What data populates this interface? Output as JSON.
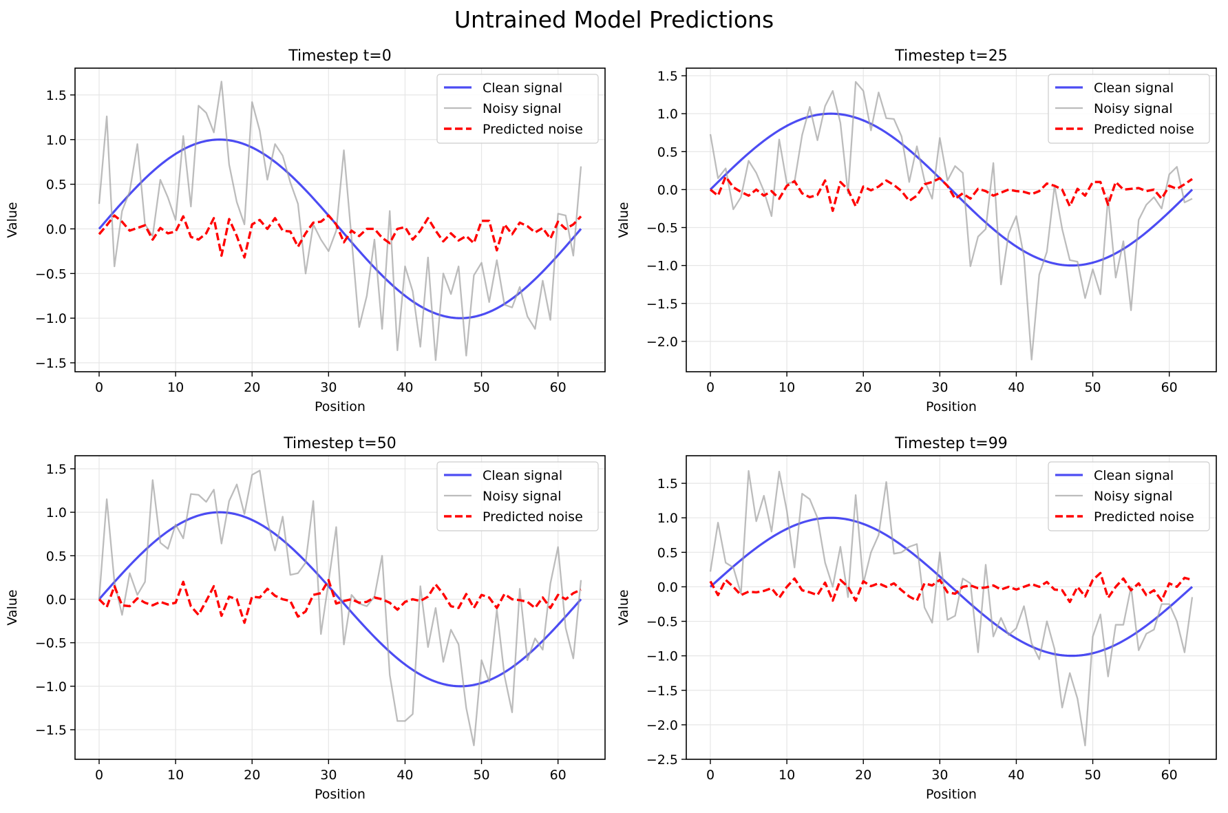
{
  "figure": {
    "suptitle": "Untrained Model Predictions"
  },
  "chart_data": [
    {
      "type": "line",
      "title": "Timestep t=0",
      "xlabel": "Position",
      "ylabel": "Value",
      "xlim": [
        -3.15,
        66.15
      ],
      "ylim": [
        -1.6,
        1.8
      ],
      "xticks": [
        0,
        10,
        20,
        30,
        40,
        50,
        60
      ],
      "xtick_labels": [
        "0",
        "10",
        "20",
        "30",
        "40",
        "50",
        "60"
      ],
      "yticks": [
        -1.5,
        -1.0,
        -0.5,
        0.0,
        0.5,
        1.0,
        1.5
      ],
      "ytick_labels": [
        "−1.5",
        "−1.0",
        "−0.5",
        "0.0",
        "0.5",
        "1.0",
        "1.5"
      ],
      "grid": true,
      "legend_position": "upper right",
      "legend": [
        "Clean signal",
        "Noisy signal",
        "Predicted noise"
      ],
      "series": [
        {
          "name": "Clean signal",
          "color": "#0000ee",
          "style": "solid",
          "generator": "sine",
          "x_range": [
            0,
            63
          ],
          "period": 63
        },
        {
          "name": "Noisy signal",
          "color": "#a0a0a0",
          "style": "solid",
          "values": [
            0.28,
            1.26,
            -0.42,
            0.2,
            0.42,
            0.95,
            0.05,
            -0.08,
            0.55,
            0.35,
            0.1,
            1.04,
            0.25,
            1.38,
            1.3,
            1.08,
            1.65,
            0.72,
            0.3,
            0.05,
            1.42,
            1.1,
            0.55,
            0.95,
            0.82,
            0.52,
            0.28,
            -0.5,
            0.05,
            -0.12,
            -0.25,
            -0.02,
            0.88,
            -0.1,
            -1.1,
            -0.75,
            -0.12,
            -1.12,
            0.2,
            -1.36,
            -0.42,
            -0.7,
            -1.32,
            -0.32,
            -1.47,
            -0.5,
            -0.73,
            -0.42,
            -1.42,
            -0.52,
            -0.38,
            -0.82,
            -0.35,
            -0.85,
            -0.88,
            -0.65,
            -0.98,
            -1.12,
            -0.58,
            -1.02,
            0.17,
            0.15,
            -0.3,
            0.7
          ]
        },
        {
          "name": "Predicted noise",
          "color": "#ff0000",
          "style": "dashed",
          "values": [
            -0.06,
            0.04,
            0.15,
            0.08,
            -0.02,
            0.01,
            0.04,
            -0.12,
            0.01,
            -0.05,
            -0.03,
            0.14,
            -0.09,
            -0.12,
            -0.05,
            0.12,
            -0.3,
            0.11,
            -0.08,
            -0.32,
            0.05,
            0.1,
            0.0,
            0.12,
            -0.02,
            -0.03,
            -0.2,
            -0.05,
            0.07,
            0.08,
            0.15,
            0.05,
            -0.15,
            -0.02,
            -0.08,
            0.0,
            0.0,
            -0.1,
            -0.16,
            0.0,
            0.02,
            -0.12,
            -0.02,
            0.12,
            -0.02,
            -0.14,
            -0.05,
            -0.13,
            -0.08,
            -0.16,
            0.09,
            0.09,
            -0.24,
            0.05,
            -0.06,
            0.07,
            0.03,
            -0.04,
            0.01,
            -0.11,
            0.08,
            0.0,
            0.05,
            0.14
          ]
        }
      ]
    },
    {
      "type": "line",
      "title": "Timestep t=25",
      "xlabel": "Position",
      "ylabel": "Value",
      "xlim": [
        -3.15,
        66.15
      ],
      "ylim": [
        -2.4,
        1.6
      ],
      "xticks": [
        0,
        10,
        20,
        30,
        40,
        50,
        60
      ],
      "xtick_labels": [
        "0",
        "10",
        "20",
        "30",
        "40",
        "50",
        "60"
      ],
      "yticks": [
        -2.0,
        -1.5,
        -1.0,
        -0.5,
        0.0,
        0.5,
        1.0,
        1.5
      ],
      "ytick_labels": [
        "−2.0",
        "−1.5",
        "−1.0",
        "−0.5",
        "0.0",
        "0.5",
        "1.0",
        "1.5"
      ],
      "grid": true,
      "legend_position": "upper right",
      "legend": [
        "Clean signal",
        "Noisy signal",
        "Predicted noise"
      ],
      "series": [
        {
          "name": "Clean signal",
          "color": "#0000ee",
          "style": "solid",
          "generator": "sine",
          "x_range": [
            0,
            63
          ],
          "period": 63
        },
        {
          "name": "Noisy signal",
          "color": "#a0a0a0",
          "style": "solid",
          "values": [
            0.73,
            0.15,
            0.28,
            -0.26,
            -0.1,
            0.38,
            0.22,
            -0.02,
            -0.35,
            0.66,
            0.08,
            0.1,
            0.72,
            1.09,
            0.65,
            1.1,
            1.3,
            0.88,
            -0.05,
            1.42,
            1.3,
            0.78,
            1.28,
            0.94,
            0.93,
            0.7,
            0.1,
            0.57,
            0.12,
            -0.12,
            0.68,
            0.12,
            0.31,
            0.22,
            -1.01,
            -0.62,
            -0.52,
            0.35,
            -1.25,
            -0.58,
            -0.35,
            -0.88,
            -2.24,
            -1.12,
            -0.82,
            0.05,
            -0.52,
            -0.93,
            -0.95,
            -1.43,
            -1.05,
            -1.38,
            -0.1,
            -1.16,
            -0.68,
            -1.59,
            -0.4,
            -0.2,
            -0.1,
            -0.25,
            0.2,
            0.3,
            -0.17,
            -0.12
          ]
        },
        {
          "name": "Predicted noise",
          "color": "#ff0000",
          "style": "dashed",
          "values": [
            0.0,
            -0.08,
            0.17,
            0.03,
            -0.03,
            -0.08,
            0.0,
            -0.08,
            -0.02,
            -0.12,
            0.05,
            0.11,
            -0.05,
            -0.1,
            -0.07,
            0.12,
            -0.28,
            0.1,
            0.0,
            -0.22,
            0.04,
            -0.01,
            0.04,
            0.12,
            0.06,
            -0.02,
            -0.15,
            -0.08,
            0.07,
            0.1,
            0.15,
            0.05,
            -0.12,
            -0.05,
            -0.12,
            0.01,
            -0.02,
            -0.08,
            -0.04,
            0.0,
            -0.02,
            -0.03,
            -0.06,
            -0.02,
            0.08,
            0.05,
            0.0,
            -0.22,
            0.01,
            -0.08,
            0.1,
            0.1,
            -0.2,
            0.1,
            0.0,
            0.01,
            0.02,
            -0.02,
            0.0,
            -0.12,
            0.05,
            0.01,
            0.07,
            0.14
          ]
        }
      ]
    },
    {
      "type": "line",
      "title": "Timestep t=50",
      "xlabel": "Position",
      "ylabel": "Value",
      "xlim": [
        -3.15,
        66.15
      ],
      "ylim": [
        -1.84,
        1.65
      ],
      "xticks": [
        0,
        10,
        20,
        30,
        40,
        50,
        60
      ],
      "xtick_labels": [
        "0",
        "10",
        "20",
        "30",
        "40",
        "50",
        "60"
      ],
      "yticks": [
        -1.5,
        -1.0,
        -0.5,
        0.0,
        0.5,
        1.0,
        1.5
      ],
      "ytick_labels": [
        "−1.5",
        "−1.0",
        "−0.5",
        "0.0",
        "0.5",
        "1.0",
        "1.5"
      ],
      "grid": true,
      "legend_position": "upper right",
      "legend": [
        "Clean signal",
        "Noisy signal",
        "Predicted noise"
      ],
      "series": [
        {
          "name": "Clean signal",
          "color": "#0000ee",
          "style": "solid",
          "generator": "sine",
          "x_range": [
            0,
            63
          ],
          "period": 63
        },
        {
          "name": "Noisy signal",
          "color": "#a0a0a0",
          "style": "solid",
          "values": [
            0.0,
            1.15,
            0.2,
            -0.18,
            0.3,
            0.05,
            0.2,
            1.37,
            0.65,
            0.58,
            0.86,
            0.7,
            1.21,
            1.2,
            1.12,
            1.26,
            0.64,
            1.13,
            1.32,
            0.98,
            1.43,
            1.48,
            0.9,
            0.56,
            0.95,
            0.28,
            0.3,
            0.42,
            1.13,
            -0.4,
            0.2,
            0.83,
            -0.52,
            0.05,
            -0.05,
            -0.08,
            0.03,
            0.5,
            -0.87,
            -1.4,
            -1.4,
            -1.32,
            0.15,
            -0.55,
            -0.1,
            -0.72,
            -0.35,
            -0.52,
            -1.25,
            -1.68,
            -0.7,
            -0.95,
            -0.12,
            -0.88,
            -1.3,
            0.12,
            -0.7,
            -0.45,
            -0.58,
            0.18,
            0.6,
            -0.33,
            -0.68,
            0.22
          ]
        },
        {
          "name": "Predicted noise",
          "color": "#ff0000",
          "style": "dashed",
          "values": [
            0.0,
            -0.09,
            0.15,
            -0.07,
            -0.08,
            0.01,
            -0.04,
            -0.07,
            -0.03,
            -0.06,
            -0.04,
            0.2,
            -0.08,
            -0.18,
            -0.02,
            0.15,
            -0.19,
            0.03,
            0.0,
            -0.27,
            0.03,
            0.02,
            0.12,
            0.04,
            0.0,
            -0.02,
            -0.2,
            -0.14,
            0.05,
            0.07,
            0.22,
            -0.05,
            -0.02,
            0.0,
            -0.04,
            -0.03,
            0.02,
            0.0,
            -0.04,
            -0.12,
            -0.03,
            0.0,
            -0.02,
            0.03,
            0.17,
            0.06,
            -0.08,
            -0.1,
            0.06,
            -0.1,
            0.05,
            0.02,
            -0.1,
            0.06,
            0.0,
            -0.01,
            -0.03,
            -0.1,
            0.02,
            -0.1,
            0.05,
            0.0,
            0.07,
            0.11
          ]
        }
      ]
    },
    {
      "type": "line",
      "title": "Timestep t=99",
      "xlabel": "Position",
      "ylabel": "Value",
      "xlim": [
        -3.15,
        66.15
      ],
      "ylim": [
        -2.5,
        1.9
      ],
      "xticks": [
        0,
        10,
        20,
        30,
        40,
        50,
        60
      ],
      "xtick_labels": [
        "0",
        "10",
        "20",
        "30",
        "40",
        "50",
        "60"
      ],
      "yticks": [
        -2.5,
        -2.0,
        -1.5,
        -1.0,
        -0.5,
        0.0,
        0.5,
        1.0,
        1.5
      ],
      "ytick_labels": [
        "−2.5",
        "−2.0",
        "−1.5",
        "−1.0",
        "−0.5",
        "0.0",
        "0.5",
        "1.0",
        "1.5"
      ],
      "grid": true,
      "legend_position": "upper right",
      "legend": [
        "Clean signal",
        "Noisy signal",
        "Predicted noise"
      ],
      "series": [
        {
          "name": "Clean signal",
          "color": "#0000ee",
          "style": "solid",
          "generator": "sine",
          "x_range": [
            0,
            63
          ],
          "period": 63
        },
        {
          "name": "Noisy signal",
          "color": "#a0a0a0",
          "style": "solid",
          "values": [
            0.22,
            0.93,
            0.35,
            0.28,
            -0.1,
            1.68,
            0.95,
            1.32,
            0.8,
            1.67,
            1.1,
            0.28,
            1.35,
            1.27,
            1.0,
            0.35,
            0.0,
            0.58,
            -0.15,
            1.33,
            0.05,
            0.5,
            0.75,
            1.52,
            0.48,
            0.5,
            0.58,
            0.62,
            -0.3,
            -0.52,
            0.5,
            -0.48,
            -0.42,
            0.12,
            0.05,
            -0.95,
            0.32,
            -0.72,
            -0.45,
            -0.7,
            -0.6,
            -0.28,
            -0.82,
            -1.05,
            -0.5,
            -0.9,
            -1.75,
            -1.25,
            -1.62,
            -2.3,
            -0.72,
            -0.4,
            -1.3,
            -0.55,
            -0.55,
            0.0,
            -0.92,
            -0.68,
            -0.62,
            -0.25,
            -0.25,
            -0.5,
            -0.95,
            -0.15
          ]
        },
        {
          "name": "Predicted noise",
          "color": "#ff0000",
          "style": "dashed",
          "values": [
            0.08,
            -0.12,
            0.1,
            0.0,
            -0.12,
            -0.07,
            -0.08,
            -0.06,
            -0.02,
            -0.16,
            0.0,
            0.12,
            -0.05,
            -0.08,
            -0.12,
            0.06,
            -0.2,
            0.1,
            0.0,
            -0.2,
            0.08,
            0.01,
            0.05,
            0.0,
            0.05,
            -0.05,
            -0.14,
            -0.2,
            0.05,
            0.02,
            0.1,
            -0.08,
            -0.1,
            0.0,
            0.02,
            -0.02,
            -0.01,
            0.02,
            -0.04,
            0.0,
            -0.04,
            0.0,
            0.04,
            0.0,
            0.07,
            -0.04,
            -0.05,
            -0.22,
            0.0,
            -0.14,
            0.1,
            0.2,
            -0.16,
            0.0,
            0.12,
            -0.05,
            0.05,
            -0.12,
            -0.05,
            -0.2,
            0.05,
            0.0,
            0.13,
            0.1
          ]
        }
      ]
    }
  ]
}
